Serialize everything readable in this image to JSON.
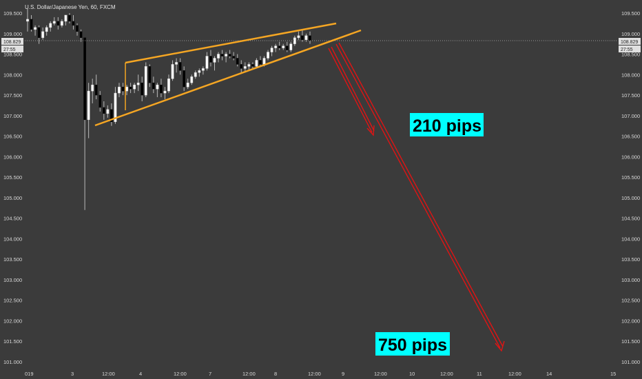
{
  "chart_data": {
    "type": "candlestick",
    "title": "U.S. Dollar/Japanese Yen, 60, FXCM",
    "ylim": [
      100.9,
      109.65
    ],
    "grid": false,
    "y_ticks": [
      "109.500",
      "109.000",
      "108.500",
      "108.000",
      "107.500",
      "107.000",
      "106.500",
      "106.000",
      "105.500",
      "105.000",
      "104.500",
      "104.000",
      "103.500",
      "103.000",
      "102.500",
      "102.000",
      "101.500",
      "101.000"
    ],
    "x_ticks": [
      "019",
      "3",
      "12:00",
      "4",
      "12:00",
      "7",
      "12:00",
      "8",
      "12:00",
      "9",
      "12:00",
      "10",
      "12:00",
      "11",
      "12:00",
      "14",
      "15"
    ],
    "current_price": "108.829",
    "countdown": "27:55",
    "candles": [
      {
        "o": 109.3,
        "h": 109.6,
        "l": 109.05,
        "c": 109.35
      },
      {
        "o": 109.35,
        "h": 109.45,
        "l": 109.05,
        "c": 109.1
      },
      {
        "o": 109.1,
        "h": 109.2,
        "l": 108.95,
        "c": 109.15
      },
      {
        "o": 109.15,
        "h": 109.2,
        "l": 108.75,
        "c": 108.9
      },
      {
        "o": 108.9,
        "h": 109.15,
        "l": 108.85,
        "c": 109.05
      },
      {
        "o": 109.05,
        "h": 109.2,
        "l": 108.95,
        "c": 109.15
      },
      {
        "o": 109.15,
        "h": 109.3,
        "l": 109.05,
        "c": 109.25
      },
      {
        "o": 109.25,
        "h": 109.4,
        "l": 109.2,
        "c": 109.3
      },
      {
        "o": 109.3,
        "h": 109.4,
        "l": 109.1,
        "c": 109.2
      },
      {
        "o": 109.2,
        "h": 109.35,
        "l": 109.15,
        "c": 109.3
      },
      {
        "o": 109.3,
        "h": 109.45,
        "l": 109.2,
        "c": 109.45
      },
      {
        "o": 109.45,
        "h": 109.5,
        "l": 109.25,
        "c": 109.3
      },
      {
        "o": 109.3,
        "h": 109.45,
        "l": 109.1,
        "c": 109.2
      },
      {
        "o": 109.2,
        "h": 109.25,
        "l": 108.95,
        "c": 109.05
      },
      {
        "o": 109.05,
        "h": 109.1,
        "l": 108.8,
        "c": 108.9
      },
      {
        "o": 108.9,
        "h": 108.9,
        "l": 104.7,
        "c": 106.9
      },
      {
        "o": 106.9,
        "h": 107.8,
        "l": 106.45,
        "c": 107.6
      },
      {
        "o": 107.6,
        "h": 107.9,
        "l": 107.3,
        "c": 107.75
      },
      {
        "o": 107.75,
        "h": 108.0,
        "l": 107.4,
        "c": 107.5
      },
      {
        "o": 107.5,
        "h": 107.6,
        "l": 107.1,
        "c": 107.2
      },
      {
        "o": 107.2,
        "h": 107.35,
        "l": 106.9,
        "c": 107.05
      },
      {
        "o": 107.05,
        "h": 107.25,
        "l": 106.95,
        "c": 107.15
      },
      {
        "o": 107.15,
        "h": 107.3,
        "l": 106.75,
        "c": 106.85
      },
      {
        "o": 106.85,
        "h": 107.7,
        "l": 106.8,
        "c": 107.55
      },
      {
        "o": 107.55,
        "h": 107.8,
        "l": 107.45,
        "c": 107.7
      },
      {
        "o": 107.7,
        "h": 107.8,
        "l": 107.5,
        "c": 107.6
      },
      {
        "o": 107.6,
        "h": 107.75,
        "l": 107.5,
        "c": 107.7
      },
      {
        "o": 107.7,
        "h": 107.8,
        "l": 107.55,
        "c": 107.65
      },
      {
        "o": 107.65,
        "h": 107.8,
        "l": 107.55,
        "c": 107.75
      },
      {
        "o": 107.75,
        "h": 108.0,
        "l": 107.6,
        "c": 107.8
      },
      {
        "o": 107.8,
        "h": 107.95,
        "l": 107.35,
        "c": 107.5
      },
      {
        "o": 107.5,
        "h": 108.3,
        "l": 107.45,
        "c": 108.2
      },
      {
        "o": 108.2,
        "h": 108.25,
        "l": 107.7,
        "c": 107.8
      },
      {
        "o": 107.8,
        "h": 107.95,
        "l": 107.55,
        "c": 107.65
      },
      {
        "o": 107.65,
        "h": 107.8,
        "l": 107.45,
        "c": 107.75
      },
      {
        "o": 107.75,
        "h": 107.9,
        "l": 107.45,
        "c": 107.55
      },
      {
        "o": 107.55,
        "h": 107.7,
        "l": 107.4,
        "c": 107.6
      },
      {
        "o": 107.6,
        "h": 108.0,
        "l": 107.55,
        "c": 107.9
      },
      {
        "o": 107.9,
        "h": 108.35,
        "l": 107.85,
        "c": 108.25
      },
      {
        "o": 108.25,
        "h": 108.4,
        "l": 108.05,
        "c": 108.3
      },
      {
        "o": 108.3,
        "h": 108.4,
        "l": 108.0,
        "c": 108.1
      },
      {
        "o": 108.1,
        "h": 108.2,
        "l": 107.6,
        "c": 107.7
      },
      {
        "o": 107.7,
        "h": 107.9,
        "l": 107.65,
        "c": 107.8
      },
      {
        "o": 107.8,
        "h": 108.0,
        "l": 107.75,
        "c": 107.95
      },
      {
        "o": 107.95,
        "h": 108.1,
        "l": 107.9,
        "c": 108.05
      },
      {
        "o": 108.05,
        "h": 108.15,
        "l": 107.95,
        "c": 108.1
      },
      {
        "o": 108.1,
        "h": 108.2,
        "l": 108.0,
        "c": 108.15
      },
      {
        "o": 108.15,
        "h": 108.55,
        "l": 108.1,
        "c": 108.45
      },
      {
        "o": 108.45,
        "h": 108.6,
        "l": 108.2,
        "c": 108.3
      },
      {
        "o": 108.3,
        "h": 108.45,
        "l": 108.1,
        "c": 108.4
      },
      {
        "o": 108.4,
        "h": 108.55,
        "l": 108.3,
        "c": 108.5
      },
      {
        "o": 108.5,
        "h": 108.6,
        "l": 108.35,
        "c": 108.45
      },
      {
        "o": 108.45,
        "h": 108.55,
        "l": 108.3,
        "c": 108.5
      },
      {
        "o": 108.5,
        "h": 108.6,
        "l": 108.4,
        "c": 108.45
      },
      {
        "o": 108.45,
        "h": 108.55,
        "l": 108.35,
        "c": 108.4
      },
      {
        "o": 108.4,
        "h": 108.5,
        "l": 108.2,
        "c": 108.25
      },
      {
        "o": 108.25,
        "h": 108.35,
        "l": 108.05,
        "c": 108.15
      },
      {
        "o": 108.15,
        "h": 108.3,
        "l": 108.05,
        "c": 108.2
      },
      {
        "o": 108.2,
        "h": 108.3,
        "l": 108.1,
        "c": 108.25
      },
      {
        "o": 108.25,
        "h": 108.3,
        "l": 108.15,
        "c": 108.2
      },
      {
        "o": 108.2,
        "h": 108.4,
        "l": 108.15,
        "c": 108.35
      },
      {
        "o": 108.35,
        "h": 108.45,
        "l": 108.2,
        "c": 108.25
      },
      {
        "o": 108.25,
        "h": 108.45,
        "l": 108.2,
        "c": 108.4
      },
      {
        "o": 108.4,
        "h": 108.6,
        "l": 108.35,
        "c": 108.55
      },
      {
        "o": 108.55,
        "h": 108.7,
        "l": 108.45,
        "c": 108.65
      },
      {
        "o": 108.65,
        "h": 108.75,
        "l": 108.55,
        "c": 108.7
      },
      {
        "o": 108.7,
        "h": 108.8,
        "l": 108.6,
        "c": 108.65
      },
      {
        "o": 108.65,
        "h": 108.75,
        "l": 108.6,
        "c": 108.7
      },
      {
        "o": 108.7,
        "h": 108.8,
        "l": 108.55,
        "c": 108.6
      },
      {
        "o": 108.6,
        "h": 108.8,
        "l": 108.55,
        "c": 108.75
      },
      {
        "o": 108.75,
        "h": 108.95,
        "l": 108.7,
        "c": 108.9
      },
      {
        "o": 108.9,
        "h": 109.05,
        "l": 108.85,
        "c": 108.95
      },
      {
        "o": 108.95,
        "h": 109.1,
        "l": 108.8,
        "c": 108.85
      },
      {
        "o": 108.85,
        "h": 109.0,
        "l": 108.8,
        "c": 108.95
      },
      {
        "o": 108.95,
        "h": 109.05,
        "l": 108.75,
        "c": 108.83
      }
    ],
    "annotations": {
      "small_target_label": "210 pips",
      "large_target_label": "750 pips"
    }
  },
  "colors": {
    "background": "#3b3b3b",
    "candle_up": "#ffffff",
    "candle_down": "#000000",
    "candle_wick": "#bbbbbb",
    "wedge_lines": "#f5a623",
    "projection_arrows": "#e01414",
    "callout_fill": "#00ffff",
    "price_tag": "#e0e0e0"
  }
}
